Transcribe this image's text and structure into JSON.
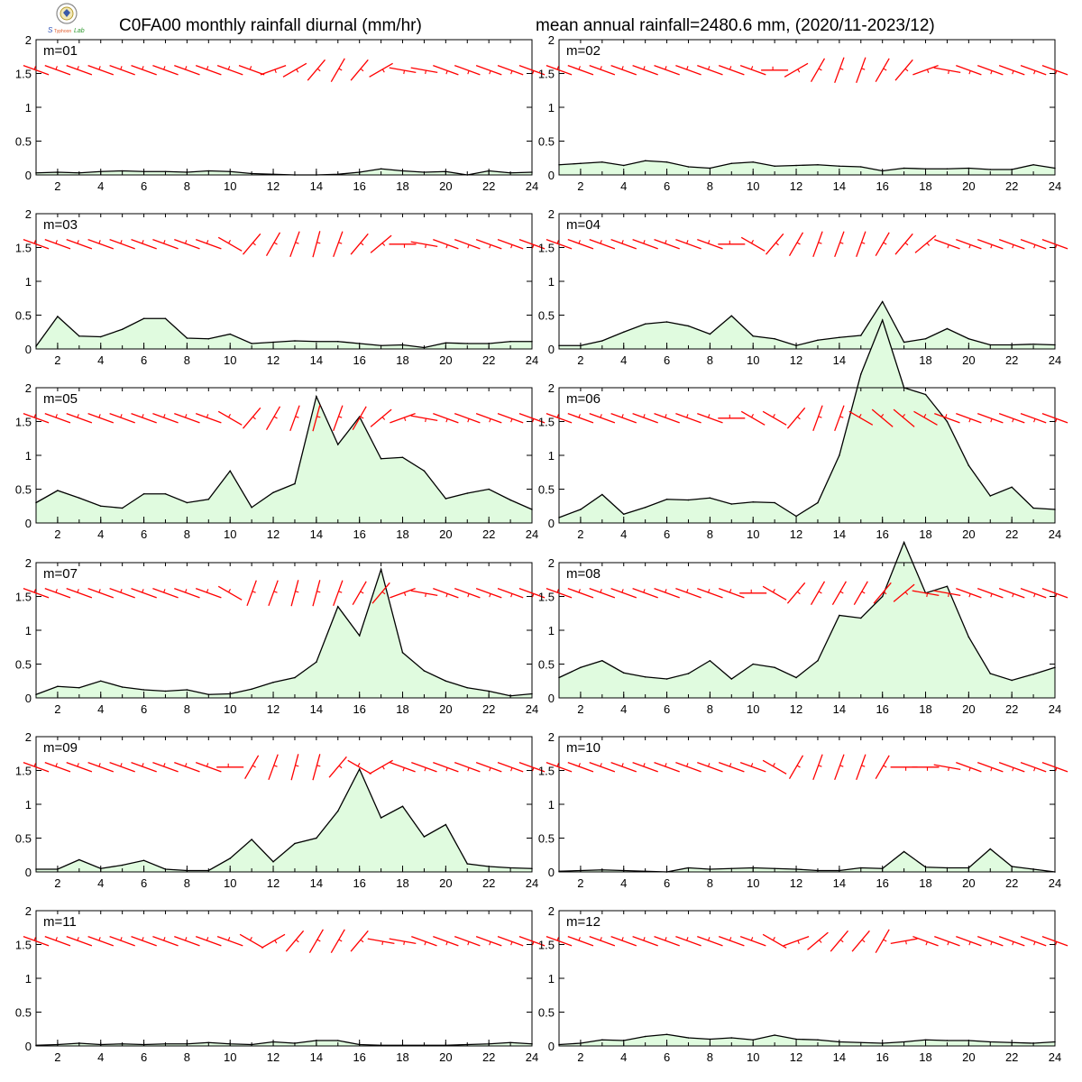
{
  "title_left": "C0FA00 monthly rainfall diurnal (mm/hr)",
  "title_right": "mean annual rainfall=2480.6 mm, (2020/11-2023/12)",
  "colors": {
    "fill": "#e0fbdf",
    "line": "#000000",
    "wind": "#ff0000"
  },
  "chart_data": {
    "type": "area",
    "x": [
      1,
      2,
      3,
      4,
      5,
      6,
      7,
      8,
      9,
      10,
      11,
      12,
      13,
      14,
      15,
      16,
      17,
      18,
      19,
      20,
      21,
      22,
      23,
      24
    ],
    "xticks": [
      2,
      4,
      6,
      8,
      10,
      12,
      14,
      16,
      18,
      20,
      22,
      24
    ],
    "ylim": [
      0,
      2
    ],
    "yticks": [
      "0",
      "0.5",
      "1",
      "1.5",
      "2"
    ],
    "wind_barb_level": 1.55,
    "panels": [
      {
        "label": "m=01",
        "values": [
          0.03,
          0.04,
          0.03,
          0.05,
          0.06,
          0.05,
          0.05,
          0.04,
          0.06,
          0.05,
          0.02,
          0.01,
          0.0,
          0.0,
          0.01,
          0.04,
          0.09,
          0.06,
          0.04,
          0.05,
          0.0,
          0.06,
          0.03,
          0.04
        ],
        "wind_dir": [
          290,
          290,
          290,
          290,
          290,
          290,
          290,
          290,
          290,
          290,
          290,
          70,
          60,
          40,
          30,
          40,
          60,
          100,
          100,
          110,
          110,
          110,
          110,
          110
        ]
      },
      {
        "label": "m=02",
        "values": [
          0.15,
          0.17,
          0.19,
          0.14,
          0.21,
          0.19,
          0.12,
          0.1,
          0.17,
          0.19,
          0.13,
          0.14,
          0.15,
          0.13,
          0.12,
          0.06,
          0.1,
          0.09,
          0.09,
          0.1,
          0.08,
          0.08,
          0.15,
          0.1
        ],
        "wind_dir": [
          290,
          290,
          290,
          290,
          290,
          290,
          290,
          290,
          290,
          290,
          270,
          60,
          30,
          20,
          20,
          30,
          40,
          70,
          100,
          110,
          110,
          110,
          110,
          110
        ]
      },
      {
        "label": "m=03",
        "values": [
          0.04,
          0.48,
          0.19,
          0.18,
          0.29,
          0.45,
          0.45,
          0.16,
          0.15,
          0.22,
          0.08,
          0.1,
          0.12,
          0.11,
          0.11,
          0.08,
          0.05,
          0.06,
          0.02,
          0.09,
          0.08,
          0.08,
          0.11,
          0.11
        ],
        "wind_dir": [
          290,
          290,
          290,
          290,
          290,
          290,
          290,
          290,
          290,
          300,
          40,
          30,
          20,
          15,
          20,
          40,
          50,
          90,
          100,
          110,
          110,
          110,
          110,
          110
        ]
      },
      {
        "label": "m=04",
        "values": [
          0.05,
          0.05,
          0.12,
          0.25,
          0.37,
          0.4,
          0.34,
          0.22,
          0.49,
          0.19,
          0.15,
          0.05,
          0.13,
          0.17,
          0.2,
          0.7,
          0.1,
          0.15,
          0.3,
          0.15,
          0.06,
          0.06,
          0.07,
          0.06
        ],
        "wind_dir": [
          290,
          290,
          290,
          290,
          290,
          290,
          290,
          290,
          270,
          300,
          40,
          30,
          20,
          20,
          20,
          30,
          40,
          50,
          110,
          110,
          110,
          110,
          110,
          110
        ]
      },
      {
        "label": "m=05",
        "values": [
          0.3,
          0.48,
          0.37,
          0.25,
          0.22,
          0.43,
          0.43,
          0.3,
          0.35,
          0.77,
          0.23,
          0.45,
          0.58,
          1.87,
          1.16,
          1.57,
          0.95,
          0.97,
          0.77,
          0.36,
          0.44,
          0.5,
          0.34,
          0.2
        ],
        "wind_dir": [
          290,
          290,
          290,
          290,
          290,
          290,
          290,
          290,
          290,
          300,
          40,
          30,
          20,
          15,
          20,
          30,
          50,
          70,
          100,
          110,
          110,
          110,
          110,
          110
        ]
      },
      {
        "label": "m=06",
        "values": [
          0.08,
          0.2,
          0.42,
          0.13,
          0.23,
          0.35,
          0.34,
          0.37,
          0.28,
          0.31,
          0.3,
          0.1,
          0.3,
          1.0,
          2.2,
          3.0,
          2.0,
          1.9,
          1.5,
          0.85,
          0.4,
          0.53,
          0.22,
          0.2
        ],
        "wind_dir": [
          290,
          290,
          290,
          290,
          290,
          290,
          290,
          290,
          270,
          300,
          300,
          40,
          20,
          20,
          300,
          310,
          310,
          300,
          290,
          110,
          110,
          110,
          110,
          110
        ]
      },
      {
        "label": "m=07",
        "values": [
          0.05,
          0.17,
          0.15,
          0.25,
          0.16,
          0.12,
          0.1,
          0.12,
          0.05,
          0.06,
          0.13,
          0.23,
          0.3,
          0.53,
          1.35,
          0.92,
          1.9,
          0.67,
          0.4,
          0.25,
          0.15,
          0.1,
          0.03,
          0.06
        ],
        "wind_dir": [
          290,
          290,
          290,
          290,
          290,
          290,
          290,
          290,
          290,
          300,
          20,
          20,
          15,
          15,
          20,
          30,
          40,
          70,
          100,
          110,
          110,
          110,
          110,
          110
        ]
      },
      {
        "label": "m=08",
        "values": [
          0.3,
          0.45,
          0.55,
          0.37,
          0.31,
          0.28,
          0.36,
          0.55,
          0.28,
          0.5,
          0.45,
          0.3,
          0.55,
          1.22,
          1.18,
          1.5,
          2.3,
          1.55,
          1.65,
          0.9,
          0.36,
          0.26,
          0.35,
          0.45
        ],
        "wind_dir": [
          290,
          290,
          290,
          290,
          290,
          290,
          290,
          290,
          290,
          270,
          300,
          40,
          30,
          30,
          30,
          40,
          50,
          100,
          100,
          110,
          110,
          110,
          110,
          110
        ]
      },
      {
        "label": "m=09",
        "values": [
          0.04,
          0.04,
          0.18,
          0.05,
          0.1,
          0.17,
          0.04,
          0.02,
          0.02,
          0.2,
          0.48,
          0.15,
          0.42,
          0.5,
          0.9,
          1.52,
          0.8,
          0.97,
          0.52,
          0.7,
          0.12,
          0.08,
          0.06,
          0.05
        ],
        "wind_dir": [
          290,
          290,
          290,
          290,
          290,
          290,
          290,
          290,
          290,
          270,
          30,
          20,
          15,
          15,
          40,
          300,
          60,
          110,
          110,
          110,
          110,
          110,
          110,
          110
        ]
      },
      {
        "label": "m=10",
        "values": [
          0.01,
          0.02,
          0.03,
          0.02,
          0.01,
          0.0,
          0.06,
          0.04,
          0.05,
          0.06,
          0.05,
          0.04,
          0.02,
          0.02,
          0.06,
          0.05,
          0.3,
          0.07,
          0.06,
          0.06,
          0.34,
          0.08,
          0.04,
          0.0
        ],
        "wind_dir": [
          290,
          290,
          290,
          290,
          290,
          290,
          290,
          290,
          290,
          290,
          300,
          30,
          20,
          20,
          20,
          30,
          90,
          90,
          100,
          110,
          110,
          110,
          110,
          110
        ]
      },
      {
        "label": "m=11",
        "values": [
          0.01,
          0.02,
          0.04,
          0.02,
          0.03,
          0.02,
          0.03,
          0.03,
          0.05,
          0.03,
          0.02,
          0.06,
          0.04,
          0.08,
          0.08,
          0.02,
          0.01,
          0.01,
          0.01,
          0.01,
          0.02,
          0.03,
          0.05,
          0.03
        ],
        "wind_dir": [
          290,
          290,
          290,
          290,
          290,
          290,
          290,
          290,
          290,
          290,
          300,
          60,
          40,
          30,
          30,
          40,
          100,
          100,
          110,
          110,
          110,
          110,
          110,
          110
        ]
      },
      {
        "label": "m=12",
        "values": [
          0.02,
          0.04,
          0.09,
          0.08,
          0.14,
          0.17,
          0.12,
          0.1,
          0.12,
          0.09,
          0.16,
          0.1,
          0.09,
          0.06,
          0.05,
          0.04,
          0.06,
          0.09,
          0.08,
          0.08,
          0.06,
          0.05,
          0.04,
          0.06
        ],
        "wind_dir": [
          290,
          290,
          290,
          290,
          290,
          290,
          290,
          290,
          290,
          290,
          300,
          70,
          50,
          40,
          40,
          30,
          80,
          110,
          110,
          110,
          110,
          110,
          110,
          110
        ]
      }
    ]
  }
}
